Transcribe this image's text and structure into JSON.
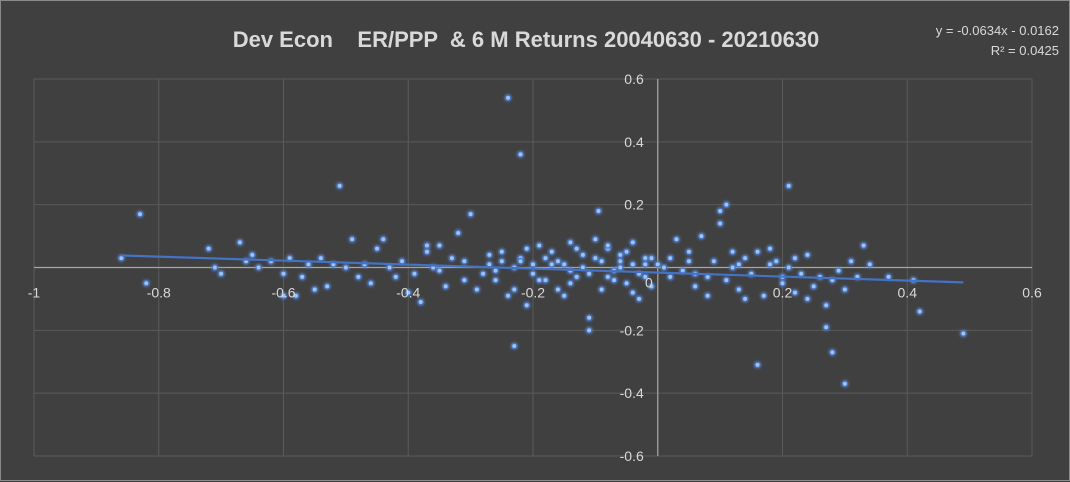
{
  "chart_data": {
    "type": "scatter",
    "title": "Dev Econ    ER/PPP  & 6 M Returns 20040630 - 20210630",
    "xlabel": "",
    "ylabel": "",
    "xlim": [
      -1,
      0.6
    ],
    "ylim": [
      -0.6,
      0.6
    ],
    "x_ticks": [
      -1,
      -0.8,
      -0.6,
      -0.4,
      -0.2,
      0,
      0.2,
      0.4,
      0.6
    ],
    "y_ticks": [
      0.6,
      0.4,
      0.2,
      0,
      -0.2,
      -0.4,
      -0.6
    ],
    "x_tick_labels": [
      "-1",
      "-0.8",
      "-0.6",
      "-0.4",
      "-0.2",
      "0",
      "0.2",
      "0.4",
      "0.6"
    ],
    "y_tick_labels": [
      "0.6",
      "0.4",
      "0.2",
      "0",
      "-0.2",
      "-0.4",
      "-0.6"
    ],
    "grid": true,
    "point_color": "#4472c4",
    "trendline": {
      "slope": -0.0634,
      "intercept": -0.0162,
      "x_range": [
        -0.86,
        0.49
      ],
      "color": "#4472c4",
      "equation": "y = -0.0634x - 0.0162",
      "r_squared": "R² = 0.0425"
    },
    "points": [
      [
        -0.86,
        0.03
      ],
      [
        -0.83,
        0.17
      ],
      [
        -0.82,
        -0.05
      ],
      [
        -0.72,
        0.06
      ],
      [
        -0.71,
        0.0
      ],
      [
        -0.7,
        -0.02
      ],
      [
        -0.67,
        0.08
      ],
      [
        -0.66,
        0.02
      ],
      [
        -0.65,
        0.04
      ],
      [
        -0.64,
        0.0
      ],
      [
        -0.62,
        0.02
      ],
      [
        -0.6,
        -0.02
      ],
      [
        -0.6,
        -0.09
      ],
      [
        -0.59,
        0.03
      ],
      [
        -0.58,
        -0.09
      ],
      [
        -0.57,
        -0.03
      ],
      [
        -0.56,
        0.01
      ],
      [
        -0.55,
        -0.07
      ],
      [
        -0.54,
        0.03
      ],
      [
        -0.53,
        -0.06
      ],
      [
        -0.52,
        0.01
      ],
      [
        -0.51,
        0.26
      ],
      [
        -0.5,
        0.0
      ],
      [
        -0.49,
        0.09
      ],
      [
        -0.48,
        -0.03
      ],
      [
        -0.47,
        0.01
      ],
      [
        -0.46,
        -0.05
      ],
      [
        -0.45,
        0.06
      ],
      [
        -0.44,
        0.09
      ],
      [
        -0.43,
        0.0
      ],
      [
        -0.42,
        -0.03
      ],
      [
        -0.41,
        0.02
      ],
      [
        -0.4,
        -0.08
      ],
      [
        -0.39,
        -0.02
      ],
      [
        -0.38,
        -0.11
      ],
      [
        -0.37,
        0.07
      ],
      [
        -0.36,
        0.0
      ],
      [
        -0.35,
        0.07
      ],
      [
        -0.34,
        -0.06
      ],
      [
        -0.33,
        0.03
      ],
      [
        -0.32,
        0.11
      ],
      [
        -0.31,
        0.02
      ],
      [
        -0.3,
        0.17
      ],
      [
        -0.29,
        -0.07
      ],
      [
        -0.28,
        -0.02
      ],
      [
        -0.27,
        0.01
      ],
      [
        -0.26,
        -0.04
      ],
      [
        -0.25,
        0.02
      ],
      [
        -0.24,
        -0.09
      ],
      [
        -0.23,
        0.0
      ],
      [
        -0.22,
        0.03
      ],
      [
        -0.21,
        -0.12
      ],
      [
        -0.2,
        0.01
      ],
      [
        -0.19,
        0.07
      ],
      [
        -0.18,
        -0.04
      ],
      [
        -0.17,
        0.05
      ],
      [
        -0.16,
        -0.07
      ],
      [
        -0.15,
        0.01
      ],
      [
        -0.14,
        0.08
      ],
      [
        -0.13,
        -0.03
      ],
      [
        -0.12,
        0.04
      ],
      [
        -0.11,
        -0.16
      ],
      [
        -0.1,
        0.03
      ],
      [
        -0.09,
        -0.07
      ],
      [
        -0.08,
        0.06
      ],
      [
        -0.07,
        -0.01
      ],
      [
        -0.06,
        0.02
      ],
      [
        -0.05,
        -0.05
      ],
      [
        -0.04,
        0.08
      ],
      [
        -0.03,
        -0.02
      ],
      [
        -0.02,
        0.03
      ],
      [
        -0.01,
        -0.06
      ],
      [
        -0.24,
        0.54
      ],
      [
        -0.22,
        0.36
      ],
      [
        -0.23,
        -0.25
      ],
      [
        -0.22,
        0.02
      ],
      [
        -0.2,
        -0.02
      ],
      [
        -0.18,
        0.03
      ],
      [
        -0.16,
        0.02
      ],
      [
        -0.14,
        -0.05
      ],
      [
        -0.12,
        0.0
      ],
      [
        -0.1,
        0.09
      ],
      [
        -0.08,
        -0.03
      ],
      [
        -0.06,
        0.04
      ],
      [
        -0.04,
        -0.08
      ],
      [
        -0.02,
        0.01
      ],
      [
        -0.25,
        0.05
      ],
      [
        -0.23,
        -0.07
      ],
      [
        -0.19,
        -0.04
      ],
      [
        -0.17,
        0.01
      ],
      [
        -0.15,
        -0.09
      ],
      [
        -0.13,
        0.06
      ],
      [
        -0.11,
        -0.02
      ],
      [
        -0.09,
        0.02
      ],
      [
        -0.07,
        -0.04
      ],
      [
        -0.05,
        0.05
      ],
      [
        -0.03,
        -0.1
      ],
      [
        -0.01,
        0.03
      ],
      [
        -0.095,
        0.18
      ],
      [
        -0.11,
        -0.2
      ],
      [
        -0.06,
        0.0
      ],
      [
        -0.02,
        -0.03
      ],
      [
        0.0,
        0.01
      ],
      [
        0.01,
        0.0
      ],
      [
        0.02,
        -0.03
      ],
      [
        0.03,
        0.09
      ],
      [
        0.04,
        -0.01
      ],
      [
        0.05,
        0.02
      ],
      [
        0.06,
        -0.06
      ],
      [
        0.07,
        0.1
      ],
      [
        0.08,
        -0.03
      ],
      [
        0.09,
        0.02
      ],
      [
        0.1,
        0.18
      ],
      [
        0.11,
        -0.04
      ],
      [
        0.12,
        0.0
      ],
      [
        0.13,
        -0.07
      ],
      [
        0.14,
        0.03
      ],
      [
        0.15,
        -0.02
      ],
      [
        0.16,
        0.05
      ],
      [
        0.17,
        -0.09
      ],
      [
        0.18,
        0.01
      ],
      [
        0.19,
        0.02
      ],
      [
        0.2,
        -0.05
      ],
      [
        0.21,
        0.0
      ],
      [
        0.22,
        -0.08
      ],
      [
        0.23,
        -0.02
      ],
      [
        0.24,
        0.04
      ],
      [
        0.25,
        -0.06
      ],
      [
        0.26,
        -0.03
      ],
      [
        0.27,
        -0.12
      ],
      [
        0.28,
        -0.04
      ],
      [
        0.29,
        -0.01
      ],
      [
        0.3,
        -0.07
      ],
      [
        0.31,
        0.02
      ],
      [
        0.32,
        -0.03
      ],
      [
        0.33,
        0.07
      ],
      [
        0.34,
        0.01
      ],
      [
        0.37,
        -0.03
      ],
      [
        0.11,
        0.2
      ],
      [
        0.1,
        0.14
      ],
      [
        0.21,
        0.26
      ],
      [
        0.16,
        -0.31
      ],
      [
        0.27,
        -0.19
      ],
      [
        0.28,
        -0.27
      ],
      [
        0.3,
        -0.37
      ],
      [
        0.41,
        -0.04
      ],
      [
        0.42,
        -0.14
      ],
      [
        0.49,
        -0.21
      ],
      [
        0.05,
        0.05
      ],
      [
        0.08,
        -0.09
      ],
      [
        0.12,
        0.05
      ],
      [
        0.14,
        -0.1
      ],
      [
        0.18,
        0.06
      ],
      [
        0.2,
        -0.03
      ],
      [
        0.22,
        0.03
      ],
      [
        0.24,
        -0.1
      ],
      [
        -0.35,
        -0.01
      ],
      [
        -0.37,
        0.05
      ],
      [
        -0.31,
        -0.04
      ],
      [
        -0.27,
        0.04
      ],
      [
        -0.26,
        -0.01
      ],
      [
        -0.21,
        0.06
      ],
      [
        -0.14,
        -0.01
      ],
      [
        -0.08,
        0.07
      ],
      [
        -0.04,
        0.01
      ],
      [
        0.02,
        0.03
      ],
      [
        0.06,
        -0.02
      ],
      [
        0.13,
        0.01
      ]
    ]
  }
}
